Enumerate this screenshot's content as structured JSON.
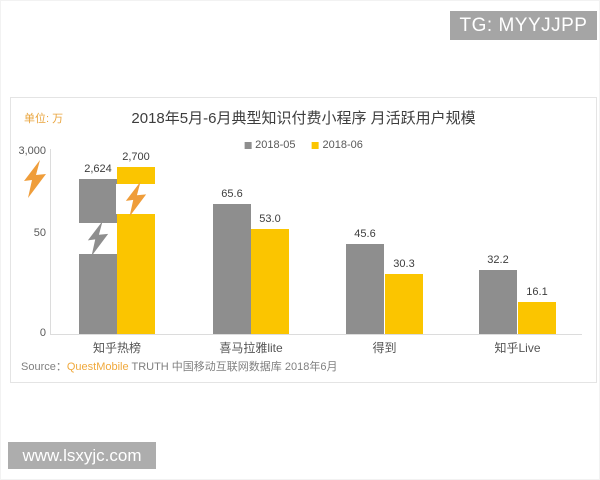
{
  "overlays": {
    "tg_badge": "TG: MYYJJPP",
    "watermark": "www.lsxyjc.com"
  },
  "chart_data": {
    "type": "bar",
    "title": "2018年5月-6月典型知识付费小程序 月活跃用户规模",
    "unit_label": "单位: 万",
    "categories": [
      "知乎热榜",
      "喜马拉雅lite",
      "得到",
      "知乎Live"
    ],
    "series": [
      {
        "name": "2018-05",
        "color": "#8E8E8E",
        "values": [
          2624,
          65.6,
          45.6,
          32.2
        ],
        "labels": [
          "2,624",
          "65.6",
          "45.6",
          "32.2"
        ]
      },
      {
        "name": "2018-06",
        "color": "#FBC500",
        "values": [
          2700,
          53.0,
          30.3,
          16.1
        ],
        "labels": [
          "2,700",
          "53.0",
          "30.3",
          "16.1"
        ]
      }
    ],
    "y_axis": {
      "ticks": [
        "3,000",
        "50",
        "0"
      ],
      "axis_break": true,
      "break_color": "#EF9D3A"
    },
    "legend_position": "top",
    "grid": false,
    "source": {
      "prefix": "Source：",
      "brand": "QuestMobile",
      "rest": " TRUTH 中国移动互联网数据库 2018年6月"
    }
  }
}
